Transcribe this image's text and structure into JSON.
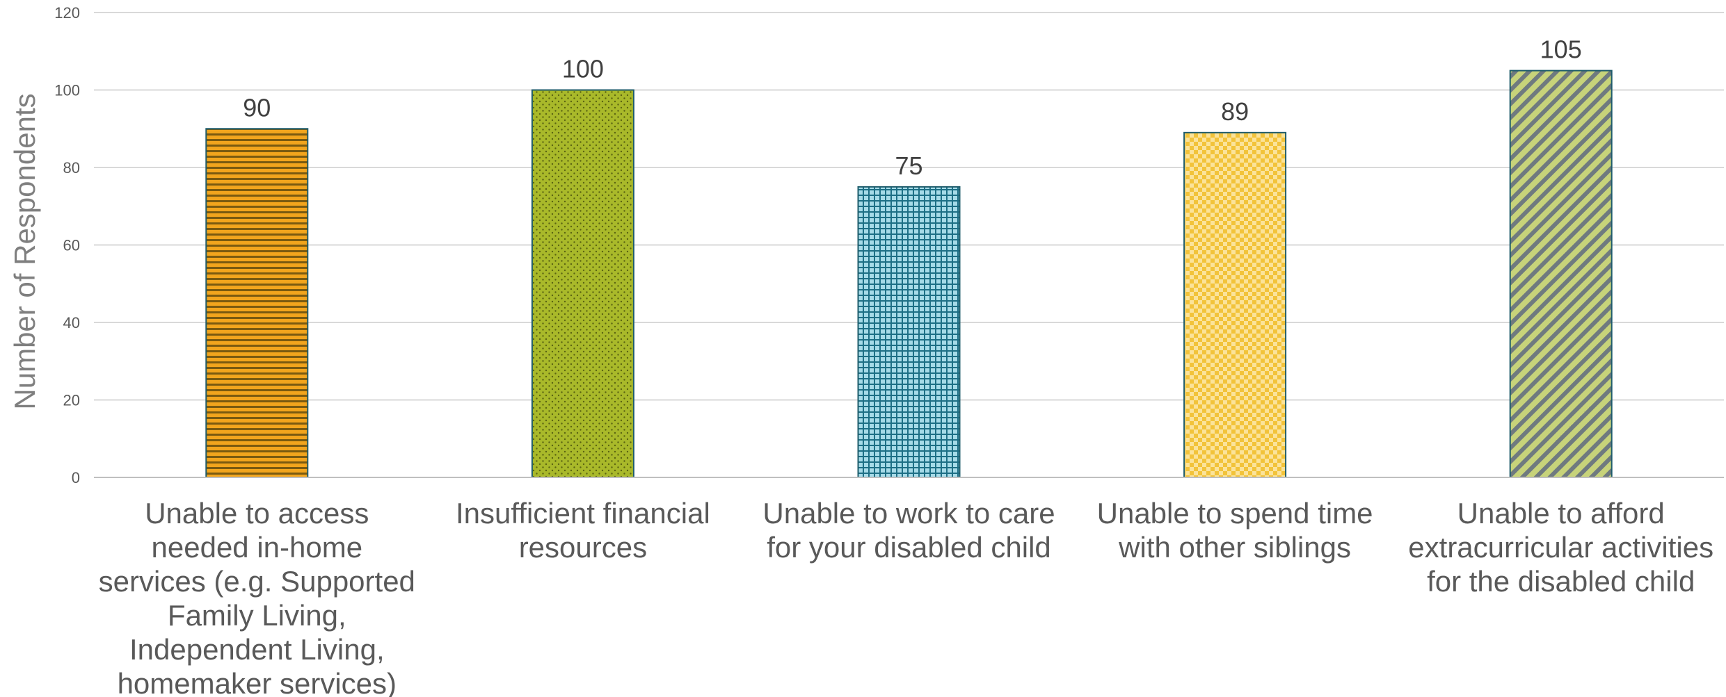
{
  "chart_data": {
    "type": "bar",
    "ylabel": "Number of Respondents",
    "ylim": [
      0,
      120
    ],
    "yticks": [
      0,
      20,
      40,
      60,
      80,
      100,
      120
    ],
    "grid": true,
    "categories": [
      [
        "Unable to access",
        "needed in-home",
        "services (e.g. Supported",
        "Family Living,",
        "Independent Living,",
        "homemaker services)"
      ],
      [
        "Insufficient financial",
        "resources"
      ],
      [
        "Unable to work to care",
        "for your disabled child"
      ],
      [
        "Unable to spend time",
        "with other siblings"
      ],
      [
        "Unable to afford",
        "extracurricular activities",
        "for the disabled child"
      ]
    ],
    "values": [
      90,
      100,
      75,
      89,
      105
    ],
    "colors": [
      "#f2a51d",
      "#a9b92a",
      "#8fd0e0",
      "#f7d35a",
      "#b8c65c"
    ],
    "patterns": [
      "horizontal-stripes",
      "dots",
      "grid",
      "checker",
      "diagonal-stripes"
    ],
    "bar_border_color": "#1f5c6b"
  }
}
